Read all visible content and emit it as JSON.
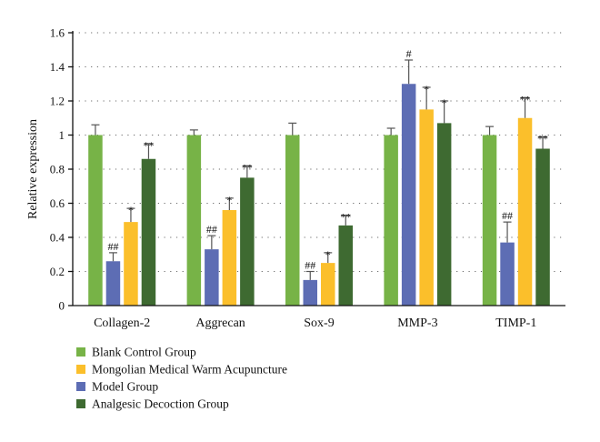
{
  "chart_data": {
    "type": "bar",
    "title": "",
    "xlabel": "",
    "ylabel": "Relative expression",
    "ylim": [
      0,
      1.6
    ],
    "yticks": [
      0,
      0.2,
      0.4,
      0.6,
      0.8,
      1,
      1.2,
      1.4,
      1.6
    ],
    "ytick_labels": [
      "0",
      "0.2",
      "0.4",
      "0.6",
      "0.8",
      "1",
      "1.2",
      "1.4",
      "1.6"
    ],
    "grid": "horizontal dotted",
    "legend_position": "bottom-left",
    "categories": [
      "Collagen-2",
      "Aggrecan",
      "Sox-9",
      "MMP-3",
      "TIMP-1"
    ],
    "series": [
      {
        "name": "Blank Control Group",
        "color": "#77b347",
        "values": [
          1.0,
          1.0,
          1.0,
          1.0,
          1.0
        ],
        "errors": [
          0.06,
          0.03,
          0.07,
          0.04,
          0.05
        ],
        "annotations": [
          "",
          "",
          "",
          "",
          ""
        ]
      },
      {
        "name": "Mongolian Medical Warm Acupuncture",
        "color": "#fbbf2b",
        "values": [
          0.49,
          0.56,
          0.25,
          1.15,
          1.1
        ],
        "errors": [
          0.08,
          0.07,
          0.06,
          0.13,
          0.12
        ],
        "annotations": [
          "*",
          "*",
          "*",
          "*",
          "**"
        ]
      },
      {
        "name": "Model Group",
        "color": "#5d6db4",
        "values": [
          0.26,
          0.33,
          0.15,
          1.3,
          0.37
        ],
        "errors": [
          0.05,
          0.08,
          0.05,
          0.14,
          0.12
        ],
        "annotations": [
          "##",
          "##",
          "##",
          "#",
          "##"
        ]
      },
      {
        "name": "Analgesic Decoction Group",
        "color": "#3e6a31",
        "values": [
          0.86,
          0.75,
          0.47,
          1.07,
          0.92
        ],
        "errors": [
          0.09,
          0.07,
          0.06,
          0.13,
          0.07
        ],
        "annotations": [
          "**",
          "**",
          "**",
          "*",
          "**"
        ]
      }
    ],
    "bar_order": [
      "Blank Control Group",
      "Model Group",
      "Mongolian Medical Warm Acupuncture",
      "Analgesic Decoction Group"
    ]
  }
}
